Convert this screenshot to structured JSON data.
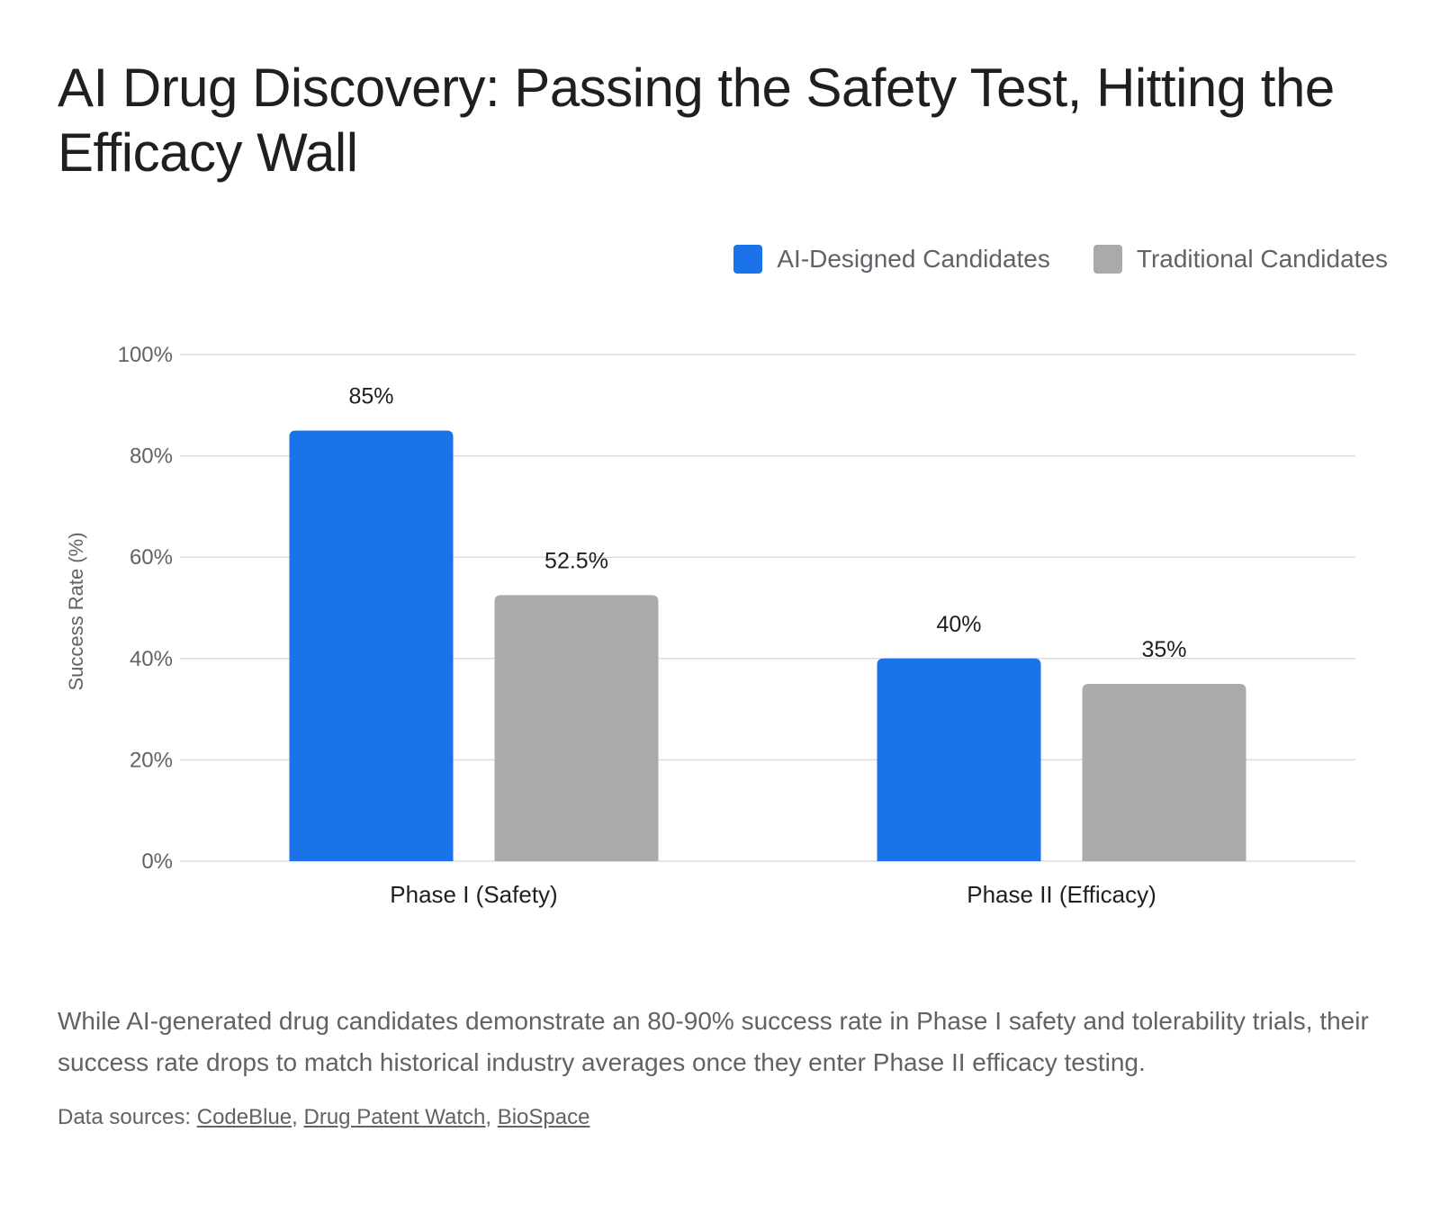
{
  "header": {
    "title": "AI Drug Discovery: Passing the Safety Test, Hitting the Efficacy Wall"
  },
  "colors": {
    "ai": "#1a73e8",
    "traditional": "#aaaaaa",
    "grid": "#dadce0"
  },
  "chart_data": {
    "type": "bar",
    "categories": [
      "Phase I (Safety)",
      "Phase II (Efficacy)"
    ],
    "series": [
      {
        "name": "AI-Designed Candidates",
        "values": [
          85,
          40
        ],
        "labels": [
          "85%",
          "40%"
        ]
      },
      {
        "name": "Traditional Candidates",
        "values": [
          52.5,
          35
        ],
        "labels": [
          "52.5%",
          "35%"
        ]
      }
    ],
    "ylabel": "Success Rate (%)",
    "ylim": [
      0,
      100
    ],
    "yticks": [
      "0%",
      "20%",
      "40%",
      "60%",
      "80%",
      "100%"
    ],
    "grid": true,
    "legend_position": "top-right"
  },
  "footer": {
    "caption": "While AI-generated drug candidates demonstrate an 80-90% success rate in Phase I safety and tolerability trials, their success rate drops to match historical industry averages once they enter Phase II efficacy testing.",
    "sources_prefix": "Data sources: ",
    "sources": [
      "CodeBlue",
      "Drug Patent Watch",
      "BioSpace"
    ],
    "separator": ", "
  }
}
